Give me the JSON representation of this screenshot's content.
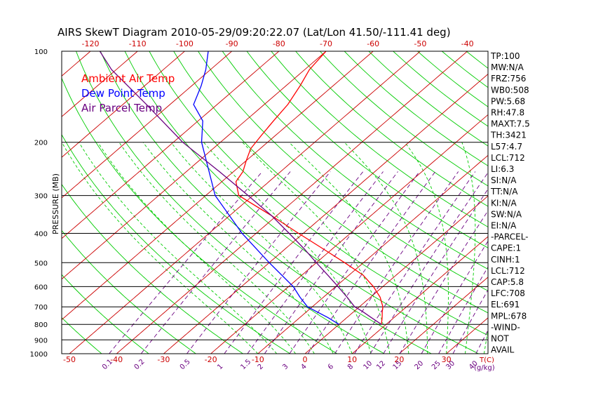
{
  "chart_data": {
    "type": "line",
    "title": "AIRS SkewT Diagram 2010-05-29/09:20:22.07 (Lat/Lon 41.50/-111.41 deg)",
    "ylabel": "PRESSURE (MB)",
    "x_bottom_unit_label": "T(C)",
    "mixing_ratio_unit_label": "(g/kg)",
    "pressure_levels": [
      "100",
      "200",
      "300",
      "400",
      "500",
      "600",
      "700",
      "800",
      "900",
      "1000"
    ],
    "top_temperature_ticks": [
      "-120",
      "-110",
      "-100",
      "-90",
      "-80",
      "-70",
      "-60",
      "-50",
      "-40"
    ],
    "bottom_temperature_ticks": [
      "-50",
      "-40",
      "-30",
      "-20",
      "-10",
      "0",
      "10",
      "20",
      "30"
    ],
    "mixing_ratio_labels": [
      "0.1",
      "0.2",
      "0.5",
      "1",
      "1.5",
      "2",
      "3",
      "4",
      "6",
      "8",
      "10",
      "12",
      "15",
      "20",
      "25",
      "30",
      "40"
    ],
    "ylim": [
      1000,
      100
    ],
    "xlim_surface": [
      -50,
      35
    ],
    "colors": {
      "ambient": "#ff0000",
      "dewpoint": "#0000ff",
      "parcel": "#6a0080",
      "isotherms": "#cc0000",
      "dry_adiabats": "#00cc00",
      "moist_adiabats": "#00cc00",
      "mixing_ratio": "#6a0080",
      "isobars": "#000000"
    },
    "series": [
      {
        "name": "Ambient Air Temp",
        "pressure": [
          800,
          760,
          725,
          700,
          650,
          600,
          550,
          500,
          450,
          400,
          350,
          300,
          270,
          250,
          230,
          210,
          190,
          170,
          150,
          130,
          115,
          100
        ],
        "temperature": [
          9,
          7.5,
          6,
          5,
          2,
          -2,
          -7,
          -14,
          -22,
          -31,
          -41,
          -53,
          -57,
          -58,
          -60,
          -62,
          -63,
          -64,
          -65,
          -67,
          -69,
          -70
        ]
      },
      {
        "name": "Dew Point Temp",
        "pressure": [
          800,
          760,
          725,
          700,
          650,
          600,
          500,
          400,
          300,
          200,
          170,
          150,
          130,
          115,
          100
        ],
        "temperature": [
          0,
          -4,
          -8,
          -11,
          -15,
          -19,
          -30,
          -43,
          -58,
          -74,
          -79,
          -85,
          -88,
          -91,
          -95
        ]
      },
      {
        "name": "Air Parcel Temp",
        "pressure": [
          800,
          760,
          725,
          712,
          700,
          650,
          600,
          550,
          500,
          450,
          400,
          350,
          300,
          250,
          200,
          150,
          115,
          100
        ],
        "temperature": [
          9,
          5.2,
          1.8,
          0.4,
          -1,
          -5,
          -9.5,
          -14.5,
          -20,
          -26,
          -33,
          -41,
          -51,
          -63,
          -78,
          -95,
          -111,
          -118
        ]
      }
    ],
    "indices": [
      "TP:100",
      "MW:N/A",
      "FRZ:756",
      "WB0:508",
      "PW:5.68",
      "RH:47.8",
      "MAXT:7.5",
      "TH:3421",
      "L57:4.7",
      "LCL:712",
      "LI:6.3",
      "SI:N/A",
      "TT:N/A",
      "KI:N/A",
      "SW:N/A",
      "EI:N/A",
      "-PARCEL-",
      "CAPE:1",
      "CINH:1",
      "LCL:712",
      "CAP:5.8",
      "LFC:708",
      "EL:691",
      "MPL:678",
      "-WIND-",
      "NOT",
      "AVAIL"
    ]
  }
}
